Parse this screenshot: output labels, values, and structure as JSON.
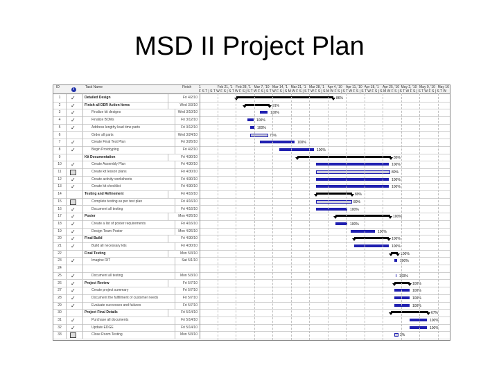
{
  "title": "MSD II Project Plan",
  "columns": {
    "id": "ID",
    "name": "Task Name",
    "finish": "Finish"
  },
  "week_labels": [
    "1",
    "Feb 21, '1",
    "Feb 28, '1",
    "Mar 7, '10",
    "Mar 14, '1",
    "Mar 21, '1",
    "Mar 28, '1",
    "Apr 4, '10",
    "Apr 11, '10",
    "Apr 18, '1",
    "Apr 25, '10",
    "May 2, '10",
    "May 9, '10",
    "May 16"
  ],
  "day_letters": "F S T | S T W F S | S T W F S | S T W F S | S T W F S | S M W F S | S T W F S | S M W F S | S T W F S | S T W F S | S M W F S | S T W F S | S T W F S | S T W",
  "tasks": [
    {
      "id": "1",
      "ind": "check",
      "name": "Detailed Design",
      "finish": "Fri 4/2/10",
      "summary": true,
      "pct": "86%"
    },
    {
      "id": "2",
      "ind": "check",
      "name": "Finish all DDR Action Items",
      "finish": "Wed 3/3/10",
      "summary": true,
      "pct": "91%"
    },
    {
      "id": "3",
      "ind": "check",
      "name": "Finalize kit designs",
      "finish": "Wed 3/10/10",
      "summary": false,
      "pct": "100%"
    },
    {
      "id": "4",
      "ind": "check",
      "name": "Finalize BOMs",
      "finish": "Fri 3/12/10",
      "summary": false,
      "pct": "100%"
    },
    {
      "id": "5",
      "ind": "check",
      "name": "Address lengthy lead time parts",
      "finish": "Fri 3/12/10",
      "summary": false,
      "pct": "100%"
    },
    {
      "id": "6",
      "ind": "",
      "name": "Order all parts",
      "finish": "Wed 3/24/10",
      "summary": false,
      "pct": "75%"
    },
    {
      "id": "7",
      "ind": "check",
      "name": "Create Final Test Plan",
      "finish": "Fri 3/26/10",
      "summary": false,
      "pct": "100%"
    },
    {
      "id": "8",
      "ind": "check",
      "name": "Begin Prototyping",
      "finish": "Fri 4/2/10",
      "summary": false,
      "pct": "100%"
    },
    {
      "id": "9",
      "ind": "",
      "name": "Kit Documentation",
      "finish": "Fri 4/30/10",
      "summary": true,
      "pct": "86%"
    },
    {
      "id": "10",
      "ind": "check",
      "name": "Create Assembly Plan",
      "finish": "Fri 4/30/10",
      "summary": false,
      "pct": "100%"
    },
    {
      "id": "11",
      "ind": "note",
      "name": "Create kit lesson plans",
      "finish": "Fri 4/30/10",
      "summary": false,
      "pct": "80%"
    },
    {
      "id": "12",
      "ind": "check",
      "name": "Create activity worksheets",
      "finish": "Fri 4/30/10",
      "summary": false,
      "pct": "100%"
    },
    {
      "id": "13",
      "ind": "check",
      "name": "Create kit checklist",
      "finish": "Fri 4/30/10",
      "summary": false,
      "pct": "100%"
    },
    {
      "id": "14",
      "ind": "",
      "name": "Testing and Refinement",
      "finish": "Fri 4/16/10",
      "summary": true,
      "pct": "89%"
    },
    {
      "id": "15",
      "ind": "note",
      "name": "Complete testing as per test plan",
      "finish": "Fri 4/16/10",
      "summary": false,
      "pct": "80%"
    },
    {
      "id": "16",
      "ind": "check",
      "name": "Document all testing",
      "finish": "Fri 4/16/10",
      "summary": false,
      "pct": "100%"
    },
    {
      "id": "17",
      "ind": "check",
      "name": "Poster",
      "finish": "Mon 4/26/10",
      "summary": true,
      "pct": "100%"
    },
    {
      "id": "18",
      "ind": "check",
      "name": "Create a list of poster requirements",
      "finish": "Fri 4/16/10",
      "summary": false,
      "pct": "100%"
    },
    {
      "id": "19",
      "ind": "check",
      "name": "Design Team Poster",
      "finish": "Mon 4/26/10",
      "summary": false,
      "pct": "100%"
    },
    {
      "id": "20",
      "ind": "check",
      "name": "Final Build",
      "finish": "Fri 4/30/10",
      "summary": true,
      "pct": "100%"
    },
    {
      "id": "21",
      "ind": "check",
      "name": "Build all necessary kits",
      "finish": "Fri 4/30/10",
      "summary": false,
      "pct": "100%"
    },
    {
      "id": "22",
      "ind": "",
      "name": "Final Testing",
      "finish": "Mon 5/3/10",
      "summary": true,
      "pct": "100%"
    },
    {
      "id": "23",
      "ind": "check",
      "name": "Imagine RIT",
      "finish": "Sat 5/1/10",
      "summary": false,
      "pct": "100%"
    },
    {
      "id": "24",
      "ind": "",
      "name": "",
      "finish": "",
      "summary": false,
      "pct": ""
    },
    {
      "id": "25",
      "ind": "check",
      "name": "Document all testing",
      "finish": "Mon 5/3/10",
      "summary": false,
      "pct": "100%"
    },
    {
      "id": "26",
      "ind": "check",
      "name": "Project Review",
      "finish": "Fri 5/7/10",
      "summary": true,
      "pct": "100%"
    },
    {
      "id": "27",
      "ind": "check",
      "name": "Create project summary",
      "finish": "Fri 5/7/10",
      "summary": false,
      "pct": "100%"
    },
    {
      "id": "28",
      "ind": "check",
      "name": "Document the fulfillment of customer needs",
      "finish": "Fri 5/7/10",
      "summary": false,
      "pct": "100%"
    },
    {
      "id": "29",
      "ind": "check",
      "name": "Evaluate successes and failures",
      "finish": "Fri 5/7/10",
      "summary": false,
      "pct": "100%"
    },
    {
      "id": "30",
      "ind": "",
      "name": "Project Final Details",
      "finish": "Fri 5/14/10",
      "summary": true,
      "pct": "67%"
    },
    {
      "id": "31",
      "ind": "check",
      "name": "Purchase all documents",
      "finish": "Fri 5/14/10",
      "summary": false,
      "pct": "100%"
    },
    {
      "id": "32",
      "ind": "check",
      "name": "Update EDGE",
      "finish": "Fri 5/14/10",
      "summary": false,
      "pct": "100%"
    },
    {
      "id": "33",
      "ind": "note",
      "name": "Close Room Testing",
      "finish": "Mon 5/3/10",
      "summary": false,
      "pct": "3%"
    }
  ],
  "bars": [
    {
      "s": 340,
      "e": 480
    },
    {
      "s": 352,
      "e": 388
    },
    {
      "s": 374,
      "e": 385
    },
    {
      "s": 356,
      "e": 365
    },
    {
      "s": 360,
      "e": 366
    },
    {
      "s": 360,
      "e": 384
    },
    {
      "s": 374,
      "e": 424
    },
    {
      "s": 402,
      "e": 452
    },
    {
      "s": 428,
      "e": 563
    },
    {
      "s": 455,
      "e": 560
    },
    {
      "s": 455,
      "e": 560
    },
    {
      "s": 455,
      "e": 560
    },
    {
      "s": 455,
      "e": 560
    },
    {
      "s": 455,
      "e": 507
    },
    {
      "s": 455,
      "e": 505
    },
    {
      "s": 455,
      "e": 500
    },
    {
      "s": 483,
      "e": 562
    },
    {
      "s": 483,
      "e": 500
    },
    {
      "s": 505,
      "e": 540
    },
    {
      "s": 510,
      "e": 560
    },
    {
      "s": 510,
      "e": 560
    },
    {
      "s": 563,
      "e": 573
    },
    {
      "s": 568,
      "e": 572
    },
    {
      "s": 0,
      "e": 0
    },
    {
      "s": 570,
      "e": 571
    },
    {
      "s": 568,
      "e": 590
    },
    {
      "s": 568,
      "e": 590
    },
    {
      "s": 568,
      "e": 590
    },
    {
      "s": 568,
      "e": 590
    },
    {
      "s": 563,
      "e": 617
    },
    {
      "s": 590,
      "e": 615
    },
    {
      "s": 590,
      "e": 615
    },
    {
      "s": 568,
      "e": 572
    }
  ]
}
